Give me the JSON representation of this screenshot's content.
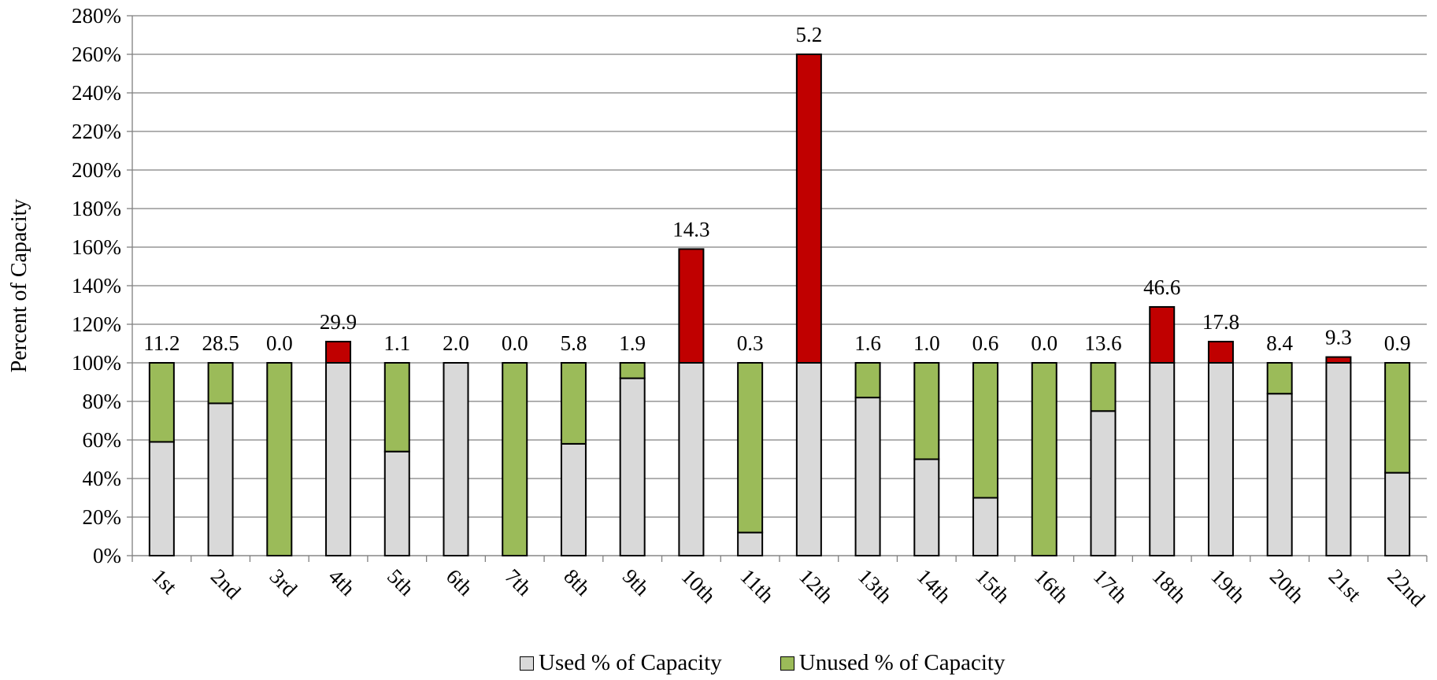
{
  "chart_data": {
    "type": "bar",
    "stacked": true,
    "categories": [
      "1st",
      "2nd",
      "3rd",
      "4th",
      "5th",
      "6th",
      "7th",
      "8th",
      "9th",
      "10th",
      "11th",
      "12th",
      "13th",
      "14th",
      "15th",
      "16th",
      "17th",
      "18th",
      "19th",
      "20th",
      "21st",
      "22nd"
    ],
    "series": [
      {
        "name": "Used % of Capacity",
        "color": "#d9d9d9",
        "values": [
          59,
          79,
          0,
          100,
          54,
          100,
          0,
          58,
          92,
          100,
          12,
          100,
          82,
          50,
          30,
          0,
          75,
          100,
          100,
          84,
          100,
          43
        ]
      },
      {
        "name": "Unused % of Capacity",
        "color": "#9bbb59",
        "values": [
          41,
          21,
          100,
          0,
          46,
          0,
          100,
          42,
          8,
          0,
          88,
          0,
          18,
          50,
          70,
          100,
          25,
          0,
          0,
          16,
          0,
          57
        ]
      },
      {
        "color": "#c00000",
        "values": [
          0,
          0,
          0,
          11,
          0,
          0,
          0,
          0,
          0,
          59,
          0,
          160,
          0,
          0,
          0,
          0,
          0,
          29,
          11,
          0,
          3,
          0
        ]
      }
    ],
    "data_labels": [
      "11.2",
      "28.5",
      "0.0",
      "29.9",
      "1.1",
      "2.0",
      "0.0",
      "5.8",
      "1.9",
      "14.3",
      "0.3",
      "5.2",
      "1.6",
      "1.0",
      "0.6",
      "0.0",
      "13.6",
      "46.6",
      "17.8",
      "8.4",
      "9.3",
      "0.9"
    ],
    "ylabel": "Percent of Capacity",
    "xlabel": "",
    "title": "",
    "ylim": [
      0,
      280
    ],
    "ytick_step": 20,
    "ytick_format": "%",
    "grid": true,
    "legend_position": "bottom",
    "colors": {
      "gridline": "#808080",
      "bar_outline": "#000000"
    }
  }
}
